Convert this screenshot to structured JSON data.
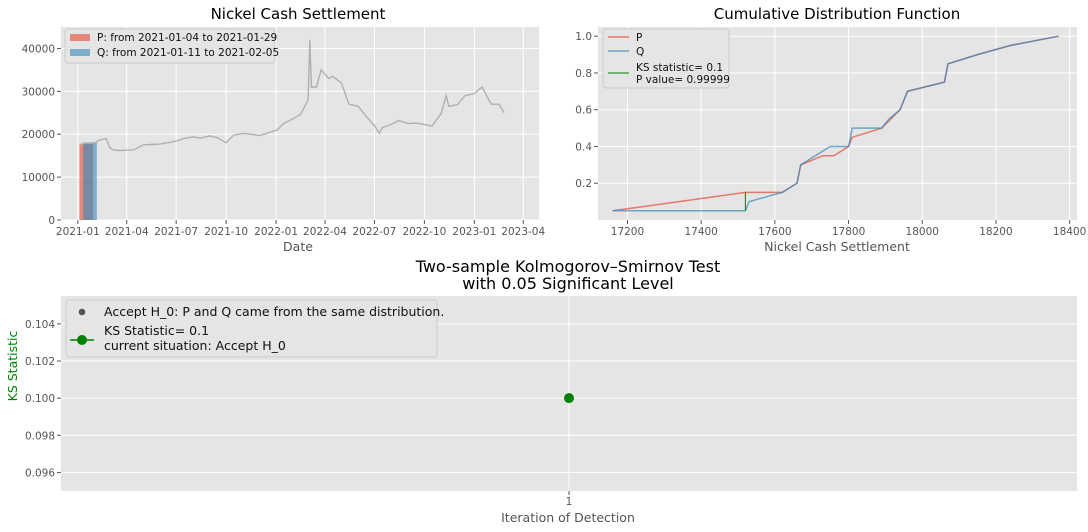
{
  "colors": {
    "p": "#e24a33",
    "q": "#348abd",
    "price": "#b0b0b0",
    "ks_marker": "#008000",
    "panel_bg": "#e5e5e5",
    "grid": "#ffffff",
    "accept_dot": "#555555"
  },
  "chart_data": [
    {
      "type": "line",
      "title": "Nickel Cash Settlement",
      "xlabel": "Date",
      "ylabel": "",
      "ylim": [
        0,
        45000
      ],
      "xlim": [
        "2020-12-01",
        "2023-04-30"
      ],
      "xticks": [
        "2021-01",
        "2021-04",
        "2021-07",
        "2021-10",
        "2022-01",
        "2022-04",
        "2022-07",
        "2022-10",
        "2023-01",
        "2023-04"
      ],
      "yticks": [
        0,
        10000,
        20000,
        30000,
        40000
      ],
      "ytick_labels": [
        "0",
        "10000",
        "20000",
        "30000",
        "40000"
      ],
      "legend": "top-left",
      "legend_entries": [
        "P: from 2021-01-04 to 2021-01-29",
        "Q: from 2021-01-11 to 2021-02-05"
      ],
      "windows": [
        {
          "name": "P",
          "start": "2021-01-04",
          "end": "2021-01-29",
          "height": 17800
        },
        {
          "name": "Q",
          "start": "2021-01-11",
          "end": "2021-02-05",
          "height": 18100
        }
      ],
      "series": [
        {
          "name": "Nickel Cash Settlement",
          "x": [
            "2021-01-04",
            "2021-01-15",
            "2021-02-01",
            "2021-02-10",
            "2021-02-22",
            "2021-03-01",
            "2021-03-08",
            "2021-03-20",
            "2021-04-01",
            "2021-04-15",
            "2021-05-01",
            "2021-05-15",
            "2021-06-01",
            "2021-06-15",
            "2021-07-01",
            "2021-07-15",
            "2021-08-01",
            "2021-08-15",
            "2021-09-01",
            "2021-09-15",
            "2021-10-01",
            "2021-10-15",
            "2021-11-01",
            "2021-11-15",
            "2021-12-01",
            "2021-12-15",
            "2022-01-03",
            "2022-01-15",
            "2022-02-01",
            "2022-02-15",
            "2022-03-01",
            "2022-03-04",
            "2022-03-07",
            "2022-03-08",
            "2022-03-16",
            "2022-03-25",
            "2022-04-01",
            "2022-04-08",
            "2022-04-15",
            "2022-05-01",
            "2022-05-15",
            "2022-06-01",
            "2022-06-15",
            "2022-07-01",
            "2022-07-10",
            "2022-07-15",
            "2022-08-01",
            "2022-08-15",
            "2022-09-01",
            "2022-09-15",
            "2022-10-01",
            "2022-10-15",
            "2022-11-01",
            "2022-11-10",
            "2022-11-15",
            "2022-12-01",
            "2022-12-15",
            "2023-01-01",
            "2023-01-15",
            "2023-02-01",
            "2023-02-15",
            "2023-02-25"
          ],
          "y": [
            17600,
            17900,
            18000,
            18600,
            19000,
            16800,
            16300,
            16200,
            16300,
            16400,
            17500,
            17600,
            17700,
            18000,
            18400,
            19000,
            19400,
            19100,
            19600,
            19200,
            18000,
            19800,
            20200,
            20000,
            19700,
            20200,
            21000,
            22500,
            23600,
            24600,
            28000,
            42000,
            31000,
            31000,
            31000,
            35000,
            34000,
            33000,
            33500,
            32000,
            27000,
            26500,
            24300,
            22000,
            20200,
            21500,
            22300,
            23200,
            22500,
            22600,
            22300,
            21900,
            24800,
            29000,
            26500,
            26900,
            29000,
            29500,
            31000,
            27000,
            27000,
            25000
          ]
        }
      ]
    },
    {
      "type": "line",
      "title": "Cumulative Distribution Function",
      "xlabel": "Nickel Cash Settlement",
      "ylabel": "",
      "xlim": [
        17120,
        18420
      ],
      "ylim": [
        0.0,
        1.05
      ],
      "xticks": [
        17200,
        17400,
        17600,
        17800,
        18000,
        18200,
        18400
      ],
      "yticks": [
        0.2,
        0.4,
        0.6,
        0.8,
        1.0
      ],
      "ytick_labels": [
        "0.2",
        "0.4",
        "0.6",
        "0.8",
        "1.0"
      ],
      "legend": "top-left",
      "legend_entries": [
        "P",
        "Q",
        "KS statistic= 0.1",
        "P value= 0.99999"
      ],
      "ks_gap": {
        "x": 17520,
        "y_low": 0.05,
        "y_high": 0.15
      },
      "series": [
        {
          "name": "P",
          "x": [
            17160,
            17520,
            17620,
            17660,
            17670,
            17730,
            17760,
            17800,
            17810,
            17890,
            17940,
            17960,
            18060,
            18070,
            18150,
            18240,
            18370
          ],
          "y": [
            0.05,
            0.15,
            0.15,
            0.2,
            0.3,
            0.35,
            0.35,
            0.4,
            0.45,
            0.5,
            0.6,
            0.7,
            0.75,
            0.85,
            0.9,
            0.95,
            1.0
          ]
        },
        {
          "name": "Q",
          "x": [
            17160,
            17520,
            17530,
            17620,
            17660,
            17670,
            17750,
            17800,
            17810,
            17890,
            17910,
            17940,
            17960,
            18060,
            18070,
            18150,
            18240,
            18370
          ],
          "y": [
            0.05,
            0.05,
            0.1,
            0.15,
            0.2,
            0.3,
            0.4,
            0.4,
            0.5,
            0.5,
            0.55,
            0.6,
            0.7,
            0.75,
            0.85,
            0.9,
            0.95,
            1.0
          ]
        }
      ]
    },
    {
      "type": "scatter",
      "title": "Two-sample Kolmogorov–Smirnov Test",
      "subtitle": "with 0.05 Significant Level",
      "xlabel": "Iteration of Detection",
      "ylabel": "KS Statistic",
      "ylim": [
        0.095,
        0.1055
      ],
      "yticks": [
        0.096,
        0.098,
        0.1,
        0.102,
        0.104
      ],
      "ytick_labels": [
        "0.096",
        "0.098",
        "0.100",
        "0.102",
        "0.104"
      ],
      "xticks": [
        1
      ],
      "xtick_labels": [
        "1"
      ],
      "legend": "top-left",
      "legend_entries": [
        "Accept H_0: P and Q came from the same distribution.",
        "KS Statistic= 0.1",
        "current situation: Accept H_0"
      ],
      "series": [
        {
          "name": "KS Statistic",
          "x": [
            1
          ],
          "y": [
            0.1
          ]
        }
      ]
    }
  ]
}
